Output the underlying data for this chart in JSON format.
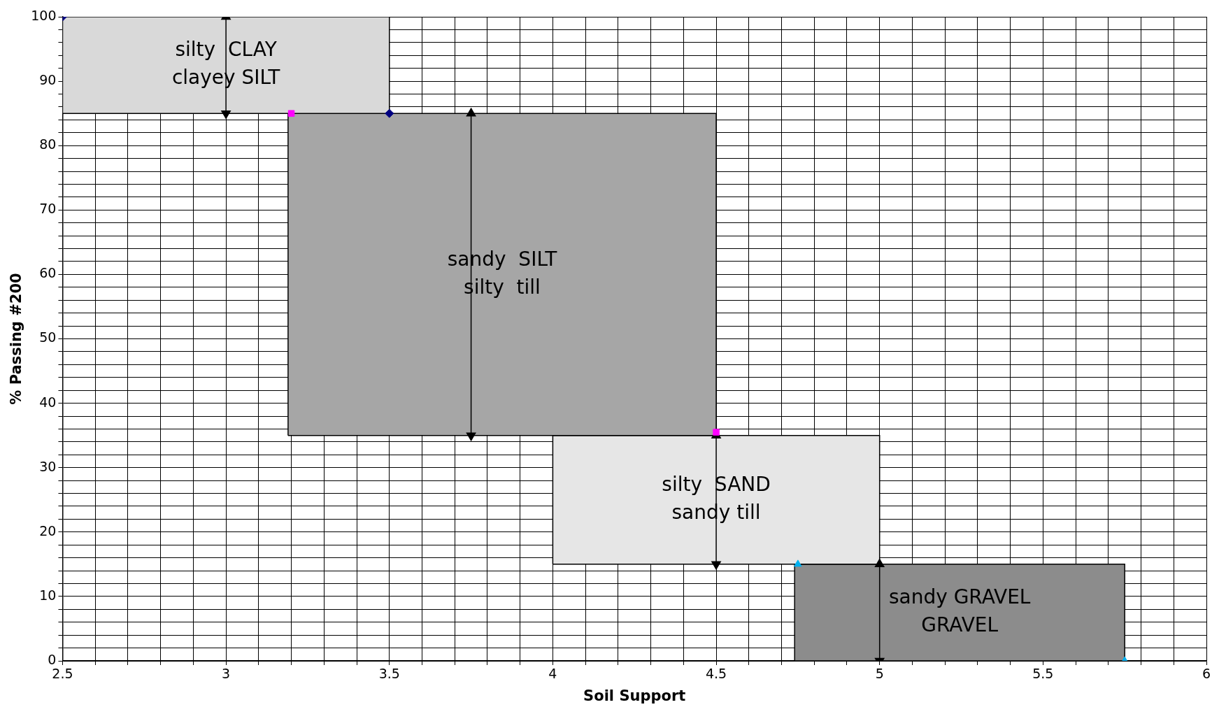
{
  "chart_data": {
    "type": "area",
    "xlabel": "Soil Support",
    "ylabel": "% Passing #200",
    "legend": false,
    "grid": true,
    "xlim": [
      2.5,
      6
    ],
    "ylim": [
      0,
      100
    ],
    "xticks": [
      2.5,
      {
        "value": 2.6,
        "label": null
      },
      {
        "value": 2.7,
        "label": null
      },
      {
        "value": 2.8,
        "label": null
      },
      {
        "value": 2.9,
        "label": null
      },
      3,
      {
        "value": 3.1,
        "label": null
      },
      {
        "value": 3.2,
        "label": null
      },
      {
        "value": 3.3,
        "label": null
      },
      {
        "value": 3.4,
        "label": null
      },
      3.5,
      {
        "value": 3.6,
        "label": null
      },
      {
        "value": 3.7,
        "label": null
      },
      {
        "value": 3.8,
        "label": null
      },
      {
        "value": 3.9,
        "label": null
      },
      4,
      {
        "value": 4.1,
        "label": null
      },
      {
        "value": 4.2,
        "label": null
      },
      {
        "value": 4.3,
        "label": null
      },
      {
        "value": 4.4,
        "label": null
      },
      4.5,
      {
        "value": 4.6,
        "label": null
      },
      {
        "value": 4.7,
        "label": null
      },
      {
        "value": 4.8,
        "label": null
      },
      {
        "value": 4.9,
        "label": null
      },
      5,
      {
        "value": 5.1,
        "label": null
      },
      {
        "value": 5.2,
        "label": null
      },
      {
        "value": 5.3,
        "label": null
      },
      {
        "value": 5.4,
        "label": null
      },
      5.5,
      {
        "value": 5.6,
        "label": null
      },
      {
        "value": 5.7,
        "label": null
      },
      {
        "value": 5.8,
        "label": null
      },
      {
        "value": 5.9,
        "label": null
      },
      6
    ],
    "yticks": [
      0,
      {
        "value": 2,
        "label": null
      },
      {
        "value": 4,
        "label": null
      },
      {
        "value": 6,
        "label": null
      },
      {
        "value": 8,
        "label": null
      },
      10,
      {
        "value": 12,
        "label": null
      },
      {
        "value": 14,
        "label": null
      },
      {
        "value": 16,
        "label": null
      },
      {
        "value": 18,
        "label": null
      },
      20,
      {
        "value": 22,
        "label": null
      },
      {
        "value": 24,
        "label": null
      },
      {
        "value": 26,
        "label": null
      },
      {
        "value": 28,
        "label": null
      },
      30,
      {
        "value": 32,
        "label": null
      },
      {
        "value": 34,
        "label": null
      },
      {
        "value": 36,
        "label": null
      },
      {
        "value": 38,
        "label": null
      },
      40,
      {
        "value": 42,
        "label": null
      },
      {
        "value": 44,
        "label": null
      },
      {
        "value": 46,
        "label": null
      },
      {
        "value": 48,
        "label": null
      },
      50,
      {
        "value": 52,
        "label": null
      },
      {
        "value": 54,
        "label": null
      },
      {
        "value": 56,
        "label": null
      },
      {
        "value": 58,
        "label": null
      },
      60,
      {
        "value": 62,
        "label": null
      },
      {
        "value": 64,
        "label": null
      },
      {
        "value": 66,
        "label": null
      },
      {
        "value": 68,
        "label": null
      },
      70,
      {
        "value": 72,
        "label": null
      },
      {
        "value": 74,
        "label": null
      },
      {
        "value": 76,
        "label": null
      },
      {
        "value": 78,
        "label": null
      },
      80,
      {
        "value": 82,
        "label": null
      },
      {
        "value": 84,
        "label": null
      },
      {
        "value": 86,
        "label": null
      },
      {
        "value": 88,
        "label": null
      },
      90,
      {
        "value": 92,
        "label": null
      },
      {
        "value": 94,
        "label": null
      },
      {
        "value": 96,
        "label": null
      },
      {
        "value": 98,
        "label": null
      },
      100
    ],
    "series": [
      {
        "name": "silty  CLAY\nclayey SILT",
        "color": "#d9d9d9",
        "x": [
          2.5,
          2.5,
          3.5,
          3.5,
          2.5
        ],
        "values": [
          85,
          100,
          100,
          85,
          85
        ]
      },
      {
        "name": "sandy  SILT\nsilty  till",
        "color": "#a6a6a6",
        "x": [
          3.19,
          3.19,
          4.5,
          4.5,
          3.19
        ],
        "values": [
          35,
          85,
          85,
          35,
          35
        ]
      },
      {
        "name": "silty  SAND\nsandy till",
        "color": "#e6e6e6",
        "x": [
          4,
          4,
          5,
          5,
          4
        ],
        "values": [
          15,
          35,
          35,
          15,
          15
        ]
      },
      {
        "name": "sandy GRAVEL\nGRAVEL",
        "color": "#8c8c8c",
        "x": [
          4.74,
          4.74,
          5.75,
          5.75,
          4.74
        ],
        "values": [
          0,
          15,
          15,
          0,
          0
        ]
      },
      {
        "type": "scatter",
        "marker": "diamond",
        "color": "#000080",
        "x": [
          2.5,
          3.5
        ],
        "values": [
          100,
          85
        ]
      },
      {
        "type": "scatter",
        "marker": "square",
        "color": "#ff00ff",
        "x": [
          3.2,
          4.5
        ],
        "values": [
          85,
          35.5
        ]
      },
      {
        "type": "scatter",
        "marker": "triangle",
        "color": "#00b0f0",
        "x": [
          4.75,
          5.75
        ],
        "values": [
          15,
          0
        ]
      },
      {
        "type": "line",
        "marker": "triangle",
        "color": "#000000",
        "x": [
          3,
          3
        ],
        "values": [
          85,
          100
        ]
      },
      {
        "type": "line",
        "marker": "triangle",
        "color": "#000000",
        "x": [
          3.75,
          3.75
        ],
        "values": [
          35,
          85
        ]
      },
      {
        "type": "line",
        "marker": "triangle",
        "color": "#000000",
        "x": [
          4.5,
          4.5
        ],
        "values": [
          15,
          35
        ]
      },
      {
        "type": "line",
        "marker": "triangle",
        "color": "#000000",
        "x": [
          5,
          5
        ],
        "values": [
          0,
          15
        ]
      }
    ]
  }
}
